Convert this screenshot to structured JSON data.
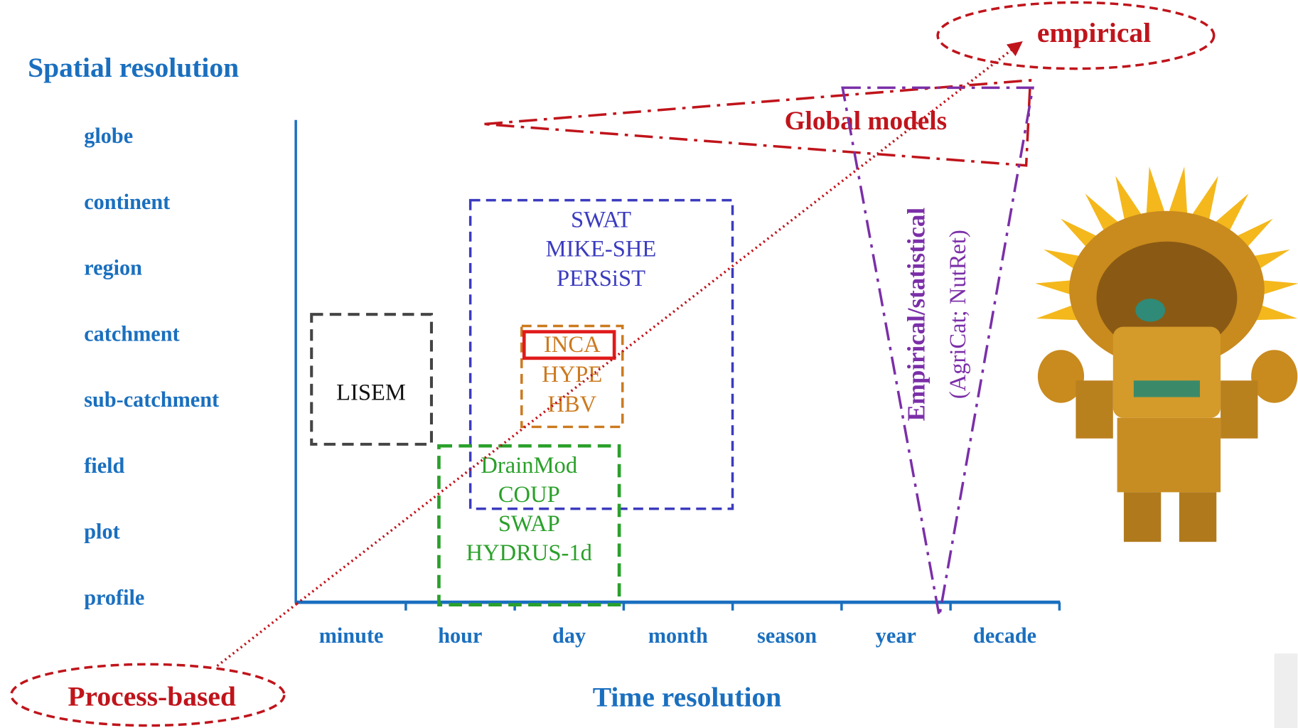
{
  "y_axis": {
    "title": "Spatial resolution",
    "labels": [
      "globe",
      "continent",
      "region",
      "catchment",
      "sub-catchment",
      "field",
      "plot",
      "profile"
    ]
  },
  "x_axis": {
    "title": "Time resolution",
    "labels": [
      "minute",
      "hour",
      "day",
      "month",
      "season",
      "year",
      "decade"
    ]
  },
  "annotations": {
    "top": "empirical",
    "bottom": "Process-based",
    "global": "Global models",
    "statistical": "Empirical/statistical",
    "statistical_models": "(AgriCat; NutRet)"
  },
  "groups": {
    "lisem": [
      "LISEM"
    ],
    "catchment": [
      "SWAT",
      "MIKE-SHE",
      "PERSiST"
    ],
    "inca": [
      "INCA",
      "HYPE",
      "HBV"
    ],
    "field": [
      "DrainMod",
      "COUP",
      "SWAP",
      "HYDRUS-1d"
    ]
  }
}
